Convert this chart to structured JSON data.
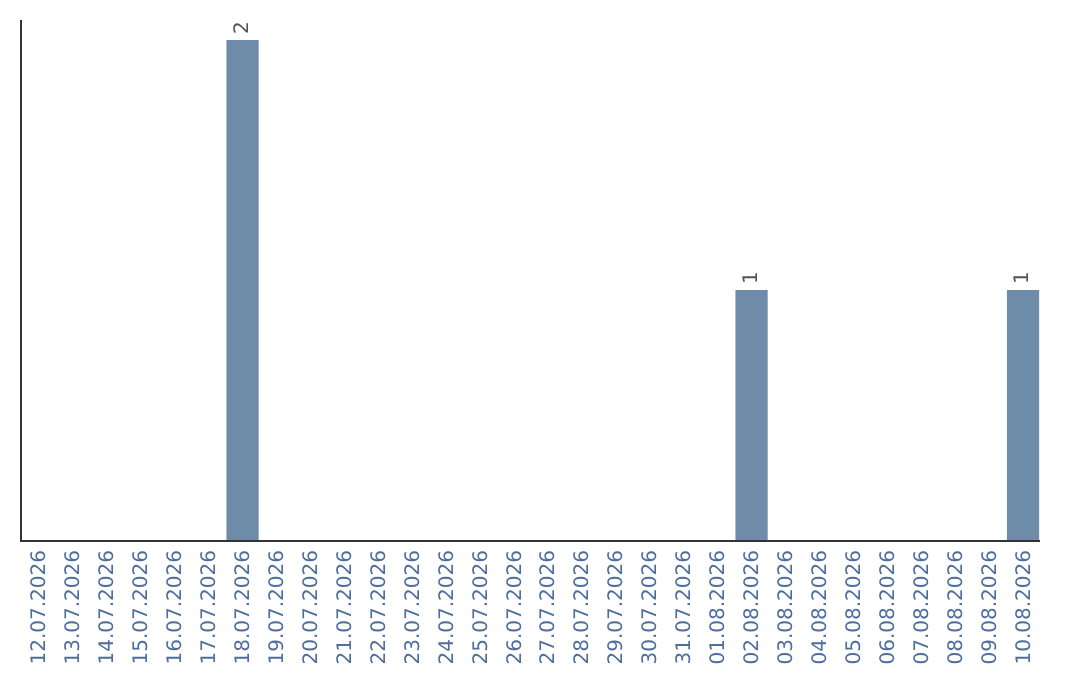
{
  "chart_data": {
    "type": "bar",
    "categories": [
      "12.07.2026",
      "13.07.2026",
      "14.07.2026",
      "15.07.2026",
      "16.07.2026",
      "17.07.2026",
      "18.07.2026",
      "19.07.2026",
      "20.07.2026",
      "21.07.2026",
      "22.07.2026",
      "23.07.2026",
      "24.07.2026",
      "25.07.2026",
      "26.07.2026",
      "27.07.2026",
      "28.07.2026",
      "29.07.2026",
      "30.07.2026",
      "31.07.2026",
      "01.08.2026",
      "02.08.2026",
      "03.08.2026",
      "04.08.2026",
      "05.08.2026",
      "06.08.2026",
      "07.08.2026",
      "08.08.2026",
      "09.08.2026",
      "10.08.2026"
    ],
    "values": [
      0,
      0,
      0,
      0,
      0,
      0,
      2,
      0,
      0,
      0,
      0,
      0,
      0,
      0,
      0,
      0,
      0,
      0,
      0,
      0,
      0,
      1,
      0,
      0,
      0,
      0,
      0,
      0,
      0,
      1
    ],
    "value_labels": [
      null,
      null,
      null,
      null,
      null,
      null,
      "2",
      null,
      null,
      null,
      null,
      null,
      null,
      null,
      null,
      null,
      null,
      null,
      null,
      null,
      null,
      "1",
      null,
      null,
      null,
      null,
      null,
      null,
      null,
      "1"
    ],
    "color": "#6e8caa",
    "ylim": [
      0,
      2.08
    ],
    "grid": false,
    "legend": false,
    "tick_labels": "x"
  }
}
